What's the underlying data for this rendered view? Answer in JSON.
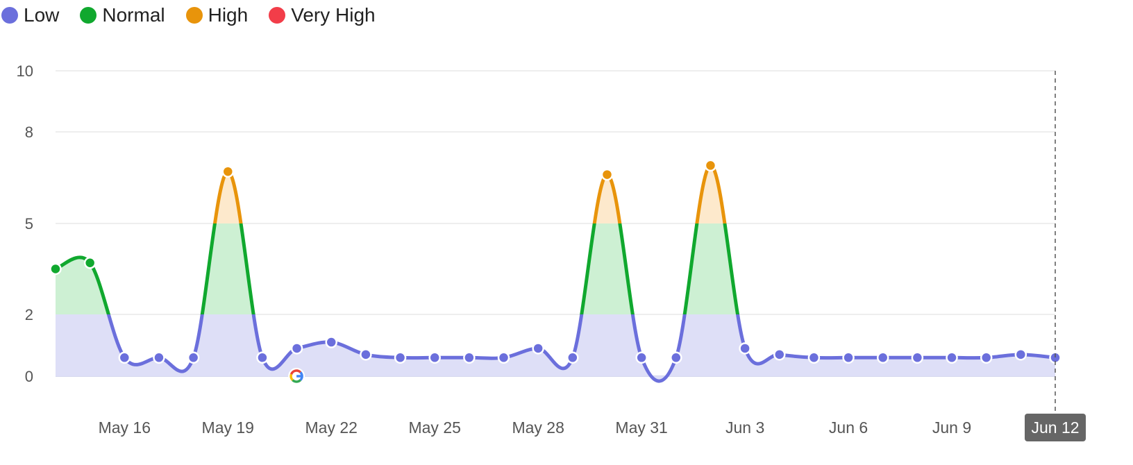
{
  "legend": {
    "items": [
      {
        "label": "Low",
        "color": "#6b6fdc"
      },
      {
        "label": "Normal",
        "color": "#10a82e"
      },
      {
        "label": "High",
        "color": "#e8940b"
      },
      {
        "label": "Very High",
        "color": "#f23d49"
      }
    ]
  },
  "chart_data": {
    "type": "area",
    "title": "",
    "xlabel": "",
    "ylabel": "",
    "ylim": [
      0,
      10
    ],
    "y_ticks": [
      0,
      2,
      5,
      8,
      10
    ],
    "grid": true,
    "legend_placement": "top-left",
    "x_tick_labels": [
      "May 16",
      "May 19",
      "May 22",
      "May 25",
      "May 28",
      "May 31",
      "Jun 3",
      "Jun 6",
      "Jun 9",
      "Jun 12"
    ],
    "x_tick_index": [
      2,
      5,
      8,
      11,
      14,
      17,
      20,
      23,
      26,
      29
    ],
    "current_label": "Jun 12",
    "thresholds": [
      {
        "level": "Low",
        "from": 0,
        "to": 2,
        "color": "#6b6fdc",
        "fill": "#dedff7"
      },
      {
        "level": "Normal",
        "from": 2,
        "to": 5,
        "color": "#10a82e",
        "fill": "#cdf0d3"
      },
      {
        "level": "High",
        "from": 5,
        "to": 8,
        "color": "#e8940b",
        "fill": "#fde9cc"
      },
      {
        "level": "Very High",
        "from": 8,
        "to": 10,
        "color": "#f23d49",
        "fill": "#fdd5d8"
      }
    ],
    "series": [
      {
        "dates": [
          "May 14",
          "May 15",
          "May 16",
          "May 17",
          "May 18",
          "May 19",
          "May 20",
          "May 21",
          "May 22",
          "May 23",
          "May 24",
          "May 25",
          "May 26",
          "May 27",
          "May 28",
          "May 29",
          "May 30",
          "May 31",
          "Jun 1",
          "Jun 2",
          "Jun 3",
          "Jun 4",
          "Jun 5",
          "Jun 6",
          "Jun 7",
          "Jun 8",
          "Jun 9",
          "Jun 10",
          "Jun 11",
          "Jun 12"
        ],
        "values": [
          3.5,
          3.7,
          0.6,
          0.6,
          0.6,
          6.7,
          0.6,
          0.9,
          1.1,
          0.7,
          0.6,
          0.6,
          0.6,
          0.6,
          0.9,
          0.6,
          6.6,
          0.6,
          0.6,
          6.9,
          0.9,
          0.7,
          0.6,
          0.6,
          0.6,
          0.6,
          0.6,
          0.6,
          0.7,
          0.6
        ]
      }
    ],
    "annotations": [
      {
        "date": "May 21",
        "icon": "google-icon"
      }
    ]
  }
}
